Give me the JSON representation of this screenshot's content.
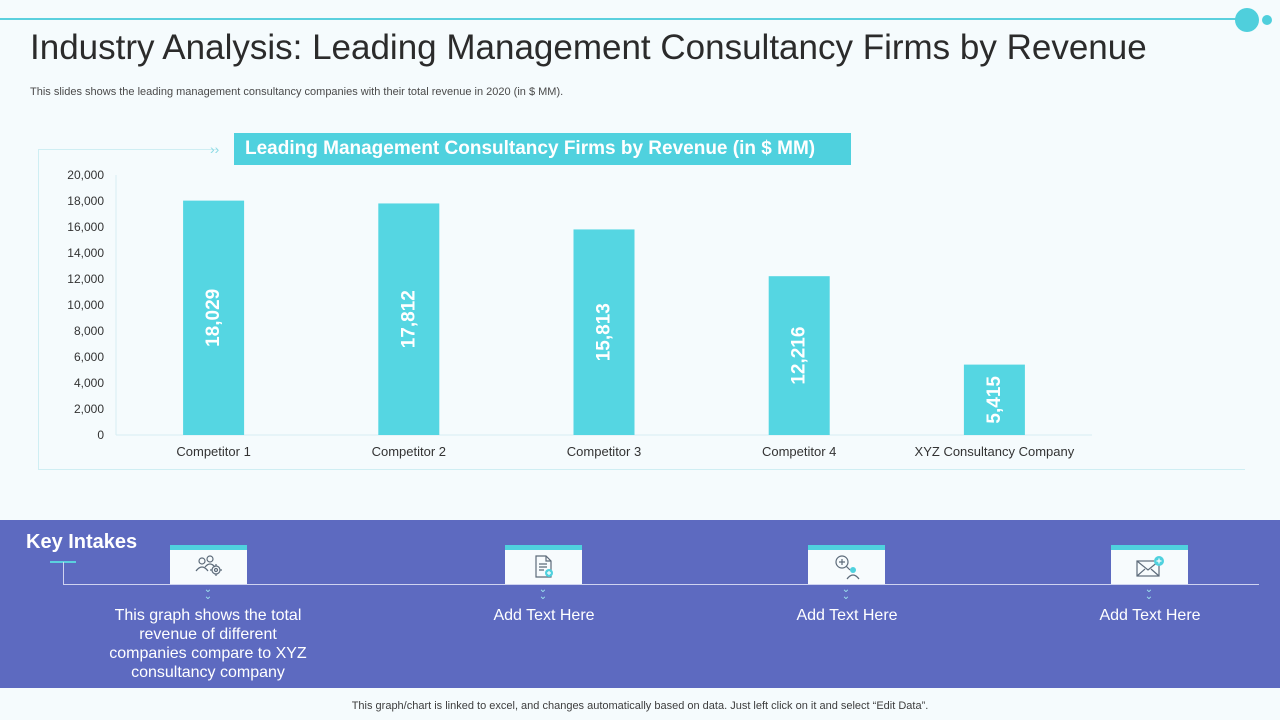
{
  "slide": {
    "title": "Industry Analysis: Leading Management Consultancy Firms by Revenue",
    "subtitle": "This slides shows the leading management consultancy companies with their total revenue in 2020 (in $ MM).",
    "footer": "This graph/chart is linked to excel, and changes automatically based on data. Just left click on it and select “Edit Data”."
  },
  "colors": {
    "bar": "#55d6e2",
    "accent": "#4fd1de",
    "panel": "#5d6ac0"
  },
  "chart_data": {
    "type": "bar",
    "title": "Leading Management Consultancy Firms by Revenue (in $ MM)",
    "categories": [
      "Competitor 1",
      "Competitor 2",
      "Competitor 3",
      "Competitor 4",
      "XYZ Consultancy Company"
    ],
    "values": [
      18029,
      17812,
      15813,
      12216,
      5415
    ],
    "value_labels": [
      "18,029",
      "17,812",
      "15,813",
      "12,216",
      "5,415"
    ],
    "yticks": [
      "0",
      "2,000",
      "4,000",
      "6,000",
      "8,000",
      "10,000",
      "12,000",
      "14,000",
      "16,000",
      "18,000",
      "20,000"
    ],
    "ylim": [
      0,
      20000
    ],
    "xlabel": "",
    "ylabel": ""
  },
  "key_intakes": {
    "title": "Key Intakes",
    "items": [
      {
        "icon": "people-gear-icon",
        "text_lines": [
          "This graph shows the total",
          "revenue  of different",
          "companies compare to XYZ",
          "consultancy  company"
        ]
      },
      {
        "icon": "document-add-icon",
        "text_lines": [
          "Add Text Here"
        ]
      },
      {
        "icon": "search-person-icon",
        "text_lines": [
          "Add Text Here"
        ]
      },
      {
        "icon": "mail-add-icon",
        "text_lines": [
          "Add Text Here"
        ]
      }
    ]
  }
}
